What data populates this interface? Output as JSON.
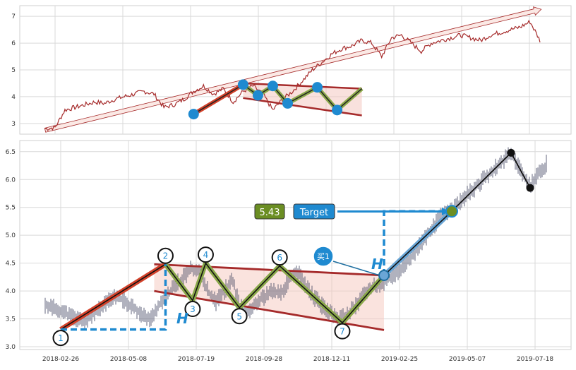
{
  "chart_data": [
    {
      "type": "line",
      "panel": "top",
      "title": "",
      "yticks": [
        "3",
        "4",
        "5",
        "6",
        "7"
      ],
      "ylim": [
        2.6,
        7.4
      ],
      "grid": true,
      "series": [
        {
          "color": "#a52a2a",
          "x": [
            0.0,
            0.02,
            0.04,
            0.06,
            0.08,
            0.1,
            0.12,
            0.14,
            0.16,
            0.18,
            0.2,
            0.22,
            0.24,
            0.26,
            0.28,
            0.3,
            0.32,
            0.34,
            0.36,
            0.38,
            0.4,
            0.42,
            0.44,
            0.46,
            0.48,
            0.5,
            0.52,
            0.54,
            0.56,
            0.58,
            0.6,
            0.62,
            0.64,
            0.66,
            0.68,
            0.7,
            0.72,
            0.74,
            0.76,
            0.78,
            0.8,
            0.82,
            0.84,
            0.86,
            0.88,
            0.9,
            0.92,
            0.94,
            0.96,
            0.98,
            1.0
          ],
          "y": [
            2.8,
            2.85,
            3.5,
            3.6,
            3.7,
            3.8,
            3.75,
            3.9,
            4.0,
            4.1,
            4.2,
            4.1,
            3.6,
            3.7,
            3.9,
            4.2,
            4.4,
            4.1,
            4.3,
            3.8,
            4.2,
            4.4,
            4.1,
            3.5,
            3.9,
            4.2,
            4.6,
            5.0,
            5.3,
            5.6,
            5.8,
            5.9,
            6.1,
            6.0,
            5.5,
            6.2,
            6.3,
            6.0,
            5.7,
            6.0,
            6.1,
            6.2,
            6.3,
            6.2,
            6.1,
            6.3,
            6.4,
            6.5,
            6.6,
            6.8,
            6.1
          ]
        }
      ],
      "annotations": {
        "arrow": {
          "from": [
            0.0,
            2.75
          ],
          "to": [
            1.0,
            7.2
          ]
        },
        "points": [
          {
            "x": 0.3,
            "y": 3.35
          },
          {
            "x": 0.4,
            "y": 4.45
          },
          {
            "x": 0.43,
            "y": 4.05
          },
          {
            "x": 0.46,
            "y": 4.4
          },
          {
            "x": 0.49,
            "y": 3.75
          },
          {
            "x": 0.55,
            "y": 4.35
          },
          {
            "x": 0.59,
            "y": 3.5
          }
        ]
      }
    },
    {
      "type": "candlestick",
      "panel": "bottom",
      "title": "",
      "categories": [
        "2018-02-26",
        "2018-05-08",
        "2018-07-19",
        "2018-09-28",
        "2018-12-11",
        "2019-02-25",
        "2019-05-07",
        "2019-07-18"
      ],
      "yticks": [
        "3.0",
        "3.5",
        "4.0",
        "4.5",
        "5.0",
        "5.5",
        "6.0",
        "6.5"
      ],
      "ylim": [
        2.95,
        6.7
      ],
      "grid": true,
      "price_line": {
        "x": [
          0,
          0.02,
          0.04,
          0.06,
          0.08,
          0.1,
          0.12,
          0.14,
          0.16,
          0.18,
          0.2,
          0.22,
          0.24,
          0.26,
          0.28,
          0.3,
          0.32,
          0.34,
          0.36,
          0.38,
          0.4,
          0.42,
          0.44,
          0.46,
          0.48,
          0.5,
          0.52,
          0.54,
          0.56,
          0.58,
          0.6,
          0.62,
          0.64,
          0.66,
          0.68,
          0.7,
          0.72,
          0.74,
          0.76,
          0.78,
          0.8,
          0.82,
          0.84,
          0.86,
          0.88,
          0.9,
          0.92,
          0.94,
          0.96,
          0.98,
          1.0
        ],
        "y": [
          3.75,
          3.7,
          3.65,
          3.55,
          3.5,
          3.45,
          3.6,
          3.7,
          3.85,
          3.9,
          3.8,
          3.7,
          3.55,
          3.5,
          3.75,
          3.9,
          4.1,
          4.25,
          4.4,
          4.35,
          4.0,
          3.8,
          4.0,
          4.2,
          3.7,
          3.65,
          3.8,
          3.9,
          4.0,
          3.95,
          4.2,
          4.35,
          4.1,
          3.9,
          3.75,
          3.6,
          3.5,
          3.55,
          3.7,
          3.9,
          4.05,
          4.1,
          4.2,
          4.3,
          4.45,
          4.6,
          4.8,
          5.0,
          5.2,
          5.4,
          5.45
        ]
      },
      "pattern_points": [
        {
          "label": "1",
          "x": "2018-02-26",
          "y": 3.31
        },
        {
          "label": "2",
          "x": "2018-06-18",
          "y": 4.48
        },
        {
          "label": "3",
          "x": "2018-07-17",
          "y": 3.83
        },
        {
          "label": "4",
          "x": "2018-07-31",
          "y": 4.5
        },
        {
          "label": "5",
          "x": "2018-09-05",
          "y": 3.7
        },
        {
          "label": "6",
          "x": "2018-10-18",
          "y": 4.45
        },
        {
          "label": "7",
          "x": "2018-12-24",
          "y": 3.43
        }
      ],
      "annotations": {
        "price_box": "5.43",
        "target_label": "Target",
        "buy_label": "买1",
        "height_label": "H"
      }
    }
  ]
}
